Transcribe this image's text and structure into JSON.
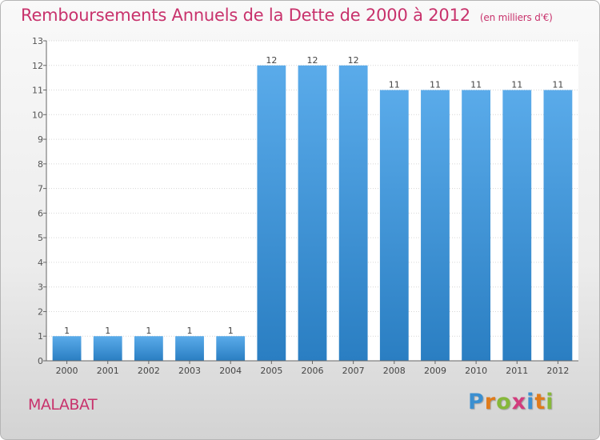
{
  "header": {
    "title": "Remboursements Annuels de la Dette de 2000 à 2012",
    "unit": "(en milliers d'€)"
  },
  "footer": {
    "commune": "MALABAT",
    "logo_letters": [
      "P",
      "r",
      "o",
      "x",
      "i",
      "t",
      "i"
    ],
    "logo_colors": [
      "#3b8fd0",
      "#e07b1b",
      "#86b83a",
      "#d23c7d",
      "#3b8fd0",
      "#e07b1b",
      "#86b83a"
    ]
  },
  "colors": {
    "accent": "#c8326c",
    "bar_light": "#5aabea",
    "bar_dark": "#2a7ec2"
  },
  "chart_data": {
    "type": "bar",
    "categories": [
      "2000",
      "2001",
      "2002",
      "2003",
      "2004",
      "2005",
      "2006",
      "2007",
      "2008",
      "2009",
      "2010",
      "2011",
      "2012"
    ],
    "values": [
      1,
      1,
      1,
      1,
      1,
      12,
      12,
      12,
      11,
      11,
      11,
      11,
      11
    ],
    "data_labels": [
      "1",
      "1",
      "1",
      "1",
      "1",
      "12",
      "12",
      "12",
      "11",
      "11",
      "11",
      "11",
      "11"
    ],
    "y_ticks": [
      0,
      1,
      2,
      3,
      4,
      5,
      6,
      7,
      8,
      9,
      10,
      11,
      12,
      13
    ],
    "ylim": [
      0,
      13
    ],
    "grid": true
  }
}
